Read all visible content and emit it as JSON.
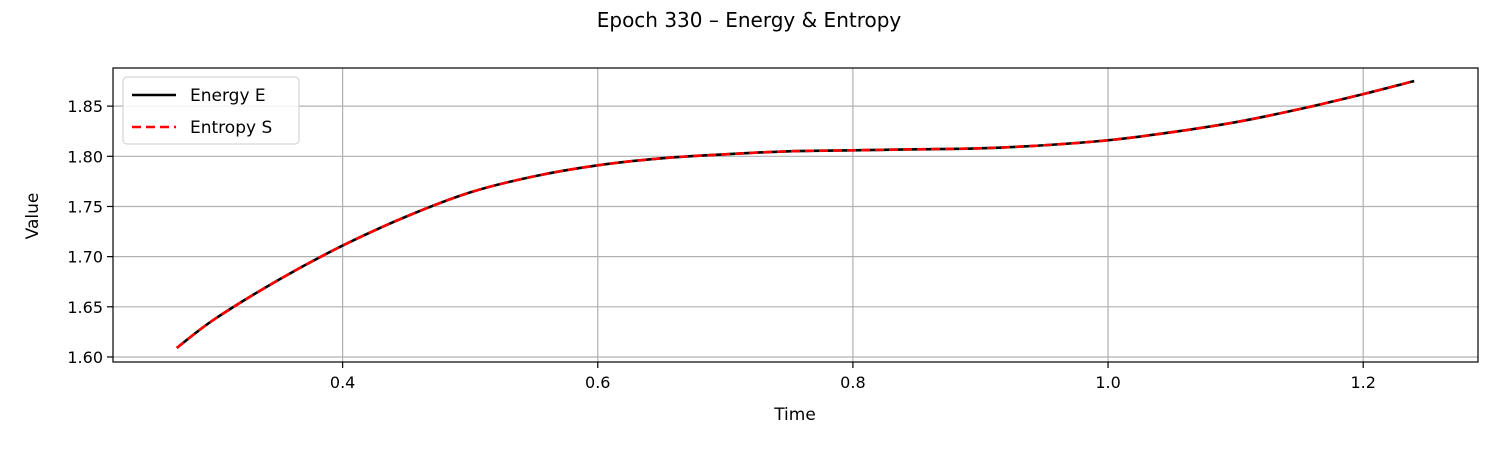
{
  "chart_data": {
    "type": "line",
    "title": "Epoch 330 – Energy & Entropy",
    "xlabel": "Time",
    "ylabel": "Value",
    "xlim": [
      0.22,
      1.29
    ],
    "ylim": [
      1.595,
      1.888
    ],
    "xticks": [
      0.4,
      0.6,
      0.8,
      1.0,
      1.2
    ],
    "xtick_labels": [
      "0.4",
      "0.6",
      "0.8",
      "1.0",
      "1.2"
    ],
    "yticks": [
      1.6,
      1.65,
      1.7,
      1.75,
      1.8,
      1.85
    ],
    "ytick_labels": [
      "1.60",
      "1.65",
      "1.70",
      "1.75",
      "1.80",
      "1.85"
    ],
    "grid": true,
    "legend_position": "top-left",
    "x": [
      0.27,
      0.3,
      0.35,
      0.4,
      0.45,
      0.5,
      0.55,
      0.6,
      0.65,
      0.7,
      0.75,
      0.8,
      0.85,
      0.9,
      0.95,
      1.0,
      1.05,
      1.1,
      1.15,
      1.2,
      1.24
    ],
    "series": [
      {
        "name": "Energy E",
        "color": "#000000",
        "style": "solid",
        "values": [
          1.609,
          1.638,
          1.677,
          1.711,
          1.74,
          1.764,
          1.78,
          1.791,
          1.798,
          1.802,
          1.805,
          1.806,
          1.807,
          1.808,
          1.811,
          1.816,
          1.824,
          1.834,
          1.847,
          1.862,
          1.875
        ]
      },
      {
        "name": "Entropy S",
        "color": "#ff0000",
        "style": "dashed",
        "values": [
          1.609,
          1.638,
          1.677,
          1.711,
          1.74,
          1.764,
          1.78,
          1.791,
          1.798,
          1.802,
          1.805,
          1.806,
          1.807,
          1.808,
          1.811,
          1.816,
          1.824,
          1.834,
          1.847,
          1.862,
          1.875
        ]
      }
    ]
  }
}
